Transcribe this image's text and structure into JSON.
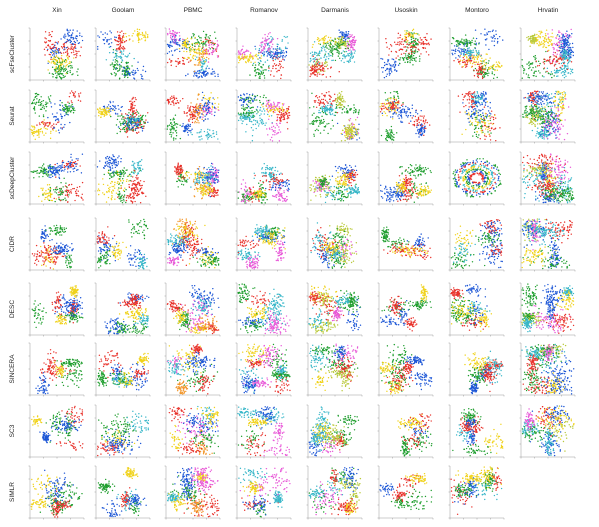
{
  "chart_data": {
    "type": "scatter",
    "layout": "grid",
    "columns": [
      "Xin",
      "Goolam",
      "PBMC",
      "Romanov",
      "Darmanis",
      "Usoskin",
      "Montoro",
      "Hrvatin"
    ],
    "rows": [
      "scFseCluster",
      "Seurat",
      "scDeepCluster",
      "CIDR",
      "DESC",
      "SINCERA",
      "SC3",
      "SIMLR"
    ],
    "missing_panels": [
      [
        7,
        7
      ]
    ],
    "palette": {
      "red": "#e8312a",
      "green": "#1f9e2e",
      "blue": "#1c56d6",
      "magenta": "#e85ad8",
      "cyan": "#37b6c8",
      "yellow": "#f0d21a",
      "olive": "#b9c93a",
      "orange": "#f2962a",
      "teal": "#5fb8c8",
      "purple": "#8a4fc8"
    },
    "dataset_colors": {
      "Xin": [
        "#e8312a",
        "#1f9e2e",
        "#1c56d6",
        "#f0d21a"
      ],
      "Goolam": [
        "#1f9e2e",
        "#1c56d6",
        "#e8312a",
        "#f0d21a",
        "#37b6c8"
      ],
      "PBMC": [
        "#e8312a",
        "#1c56d6",
        "#f0d21a",
        "#e85ad8",
        "#f2962a",
        "#1f9e2e",
        "#37b6c8"
      ],
      "Romanov": [
        "#37b6c8",
        "#e85ad8",
        "#1f9e2e",
        "#e8312a",
        "#1c56d6",
        "#f0d21a"
      ],
      "Darmanis": [
        "#b9c93a",
        "#1f9e2e",
        "#37b6c8",
        "#e8312a",
        "#1c56d6",
        "#e85ad8",
        "#f0d21a"
      ],
      "Usoskin": [
        "#1f9e2e",
        "#e8312a",
        "#1c56d6",
        "#f0d21a"
      ],
      "Montoro": [
        "#e8312a",
        "#1c56d6",
        "#1f9e2e",
        "#f0d21a",
        "#37b6c8"
      ],
      "Hrvatin": [
        "#37b6c8",
        "#1c56d6",
        "#1f9e2e",
        "#e8312a",
        "#b9c93a",
        "#f0d21a",
        "#e85ad8"
      ]
    },
    "grid": false
  }
}
